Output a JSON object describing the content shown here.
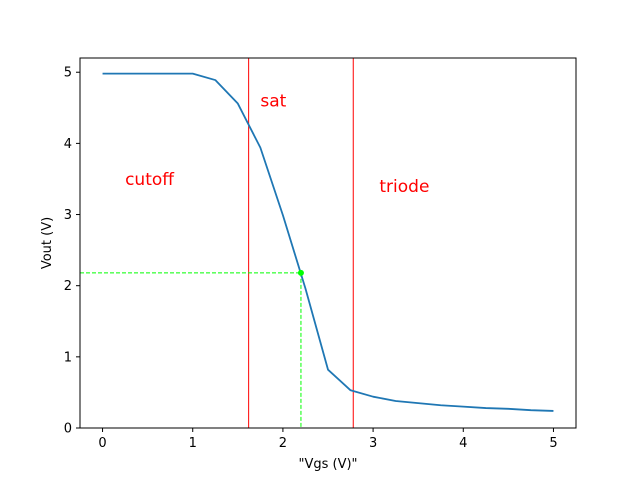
{
  "chart_data": {
    "type": "line",
    "title": "",
    "xlabel": "\"Vgs (V)\"",
    "ylabel": "Vout (V)",
    "xlim": [
      -0.25,
      5.25
    ],
    "ylim": [
      0,
      5.2
    ],
    "x_ticks": [
      0,
      1,
      2,
      3,
      4,
      5
    ],
    "y_ticks": [
      0,
      1,
      2,
      3,
      4,
      5
    ],
    "grid": false,
    "colors": {
      "series": "#1f77b4",
      "region_lines": "#ff0000",
      "region_text": "#ff0000",
      "operating_point": "#00ff00"
    },
    "series": [
      {
        "x": [
          0,
          0.25,
          0.5,
          0.75,
          1.0,
          1.25,
          1.5,
          1.75,
          2.0,
          2.25,
          2.5,
          2.75,
          3.0,
          3.25,
          3.5,
          3.75,
          4.0,
          4.25,
          4.5,
          4.75,
          5.0
        ],
        "y": [
          4.98,
          4.98,
          4.98,
          4.98,
          4.98,
          4.89,
          4.56,
          3.94,
          2.99,
          1.96,
          0.82,
          0.53,
          0.44,
          0.38,
          0.35,
          0.32,
          0.3,
          0.28,
          0.27,
          0.25,
          0.24
        ]
      }
    ],
    "vertical_lines": [
      1.62,
      2.78
    ],
    "operating_point": {
      "x": 2.2,
      "y": 2.18
    },
    "annotations": [
      {
        "text": "cutoff",
        "x": 0.25,
        "y": 3.5
      },
      {
        "text": "sat",
        "x": 1.75,
        "y": 4.6
      },
      {
        "text": "triode",
        "x": 3.07,
        "y": 3.4
      }
    ]
  }
}
